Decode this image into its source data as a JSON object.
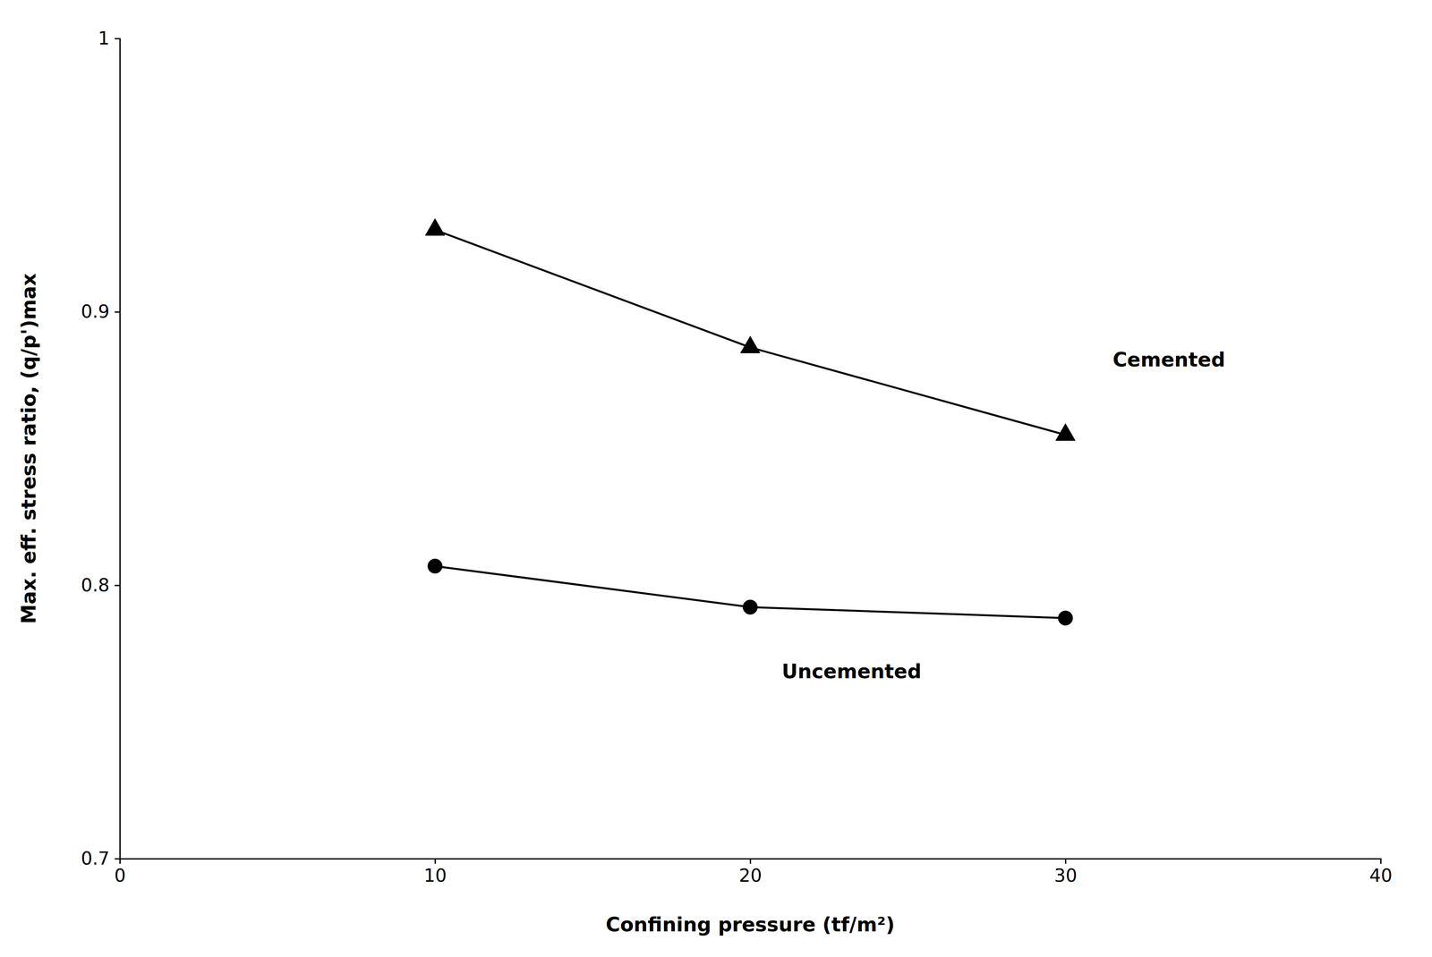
{
  "chart_data": {
    "type": "line",
    "xlabel": "Confining pressure (tf/m²)",
    "ylabel": "Max. eff. stress ratio, (q/p')max",
    "x": [
      10,
      20,
      30
    ],
    "series": [
      {
        "color": "#000000",
        "marker": "triangle",
        "values": [
          0.93,
          0.887,
          0.855
        ]
      },
      {
        "color": "#000000",
        "marker": "circle",
        "values": [
          0.807,
          0.792,
          0.788
        ]
      }
    ],
    "annotations": [
      {
        "text": "Cemented",
        "x": 31.5,
        "y": 0.882
      },
      {
        "text": "Uncemented",
        "x": 21.0,
        "y": 0.768
      }
    ],
    "xlim": [
      0,
      40
    ],
    "ylim": [
      0.7,
      1
    ],
    "xticks": [
      0,
      10,
      20,
      30,
      40
    ],
    "yticks": [
      0.7,
      0.8,
      0.9,
      1
    ],
    "grid": false
  }
}
